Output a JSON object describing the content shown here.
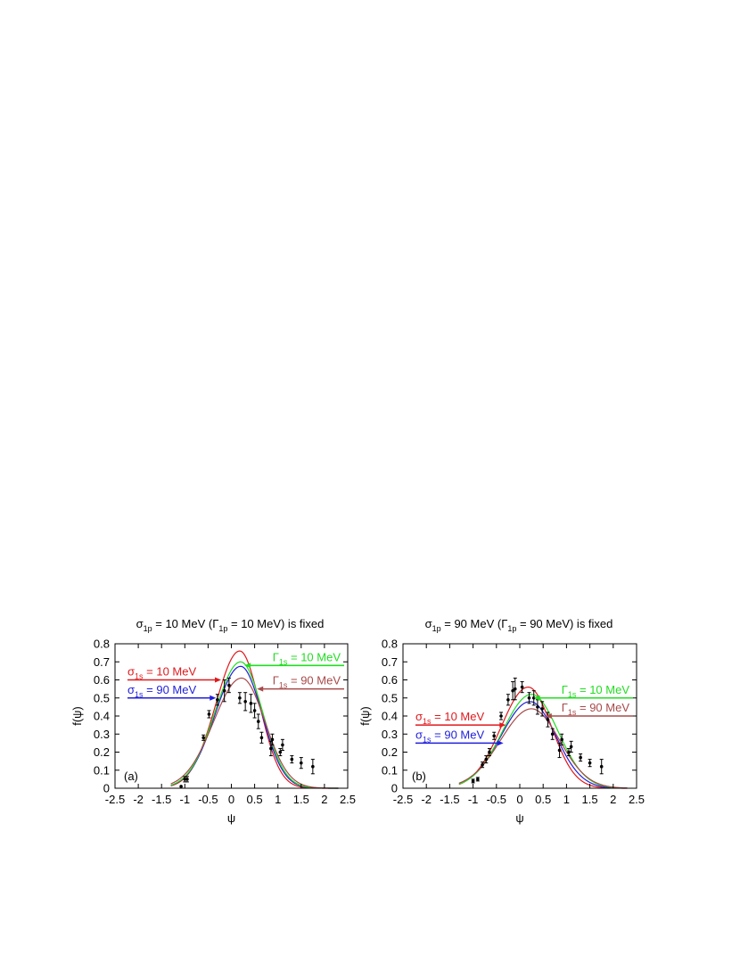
{
  "chart_data": [
    {
      "panel": "a",
      "type": "line",
      "title": {
        "sigma_sub": "1p",
        "sigma_val": "= 10 MeV  (",
        "gamma_sub": "1p",
        "gamma_val": "= 10 MeV) is fixed"
      },
      "xlabel": "ψ",
      "ylabel": "f(ψ)",
      "panel_label": "(a)",
      "xlim": [
        -2.5,
        2.5
      ],
      "ylim": [
        0,
        0.8
      ],
      "xticks": [
        -2.5,
        -2,
        -1.5,
        -1,
        -0.5,
        0,
        0.5,
        1,
        1.5,
        2,
        2.5
      ],
      "yticks": [
        0,
        0.1,
        0.2,
        0.3,
        0.4,
        0.5,
        0.6,
        0.7,
        0.8
      ],
      "grid": false,
      "series": [
        {
          "color": "#e0191c",
          "peak_x": 0.18,
          "peak_y": 0.76,
          "w_left": 0.52,
          "w_right": 0.43,
          "label_sym": "σ",
          "label_sub": "1s",
          "label_val": "= 10 MeV",
          "label_y": 0.6,
          "arrow_tip_x": -0.22,
          "arrow_side": "left"
        },
        {
          "color": "#1f1fdc",
          "peak_x": 0.2,
          "peak_y": 0.675,
          "w_left": 0.55,
          "w_right": 0.46,
          "label_sym": "σ",
          "label_sub": "1s",
          "label_val": "= 90 MeV",
          "label_y": 0.5,
          "arrow_tip_x": -0.33,
          "arrow_side": "left"
        },
        {
          "color": "#22dd22",
          "peak_x": 0.2,
          "peak_y": 0.7,
          "w_left": 0.55,
          "w_right": 0.47,
          "label_sym": "Γ",
          "label_sub": "1s",
          "label_val": "= 10 MeV",
          "label_y": 0.68,
          "arrow_tip_x": 0.28,
          "arrow_side": "right"
        },
        {
          "color": "#a84a4a",
          "peak_x": 0.22,
          "peak_y": 0.61,
          "w_left": 0.6,
          "w_right": 0.5,
          "label_sym": "Γ",
          "label_sub": "1s",
          "label_val": "= 90 MeV",
          "label_y": 0.55,
          "arrow_tip_x": 0.55,
          "arrow_side": "right"
        }
      ],
      "data_points": [
        {
          "x": -1.08,
          "y": 0.01,
          "e": 0.0
        },
        {
          "x": -1.0,
          "y": 0.05,
          "e": 0.015
        },
        {
          "x": -0.95,
          "y": 0.05,
          "e": 0.015
        },
        {
          "x": -0.6,
          "y": 0.28,
          "e": 0.015
        },
        {
          "x": -0.48,
          "y": 0.41,
          "e": 0.02
        },
        {
          "x": -0.3,
          "y": 0.49,
          "e": 0.03
        },
        {
          "x": -0.15,
          "y": 0.54,
          "e": 0.06
        },
        {
          "x": -0.05,
          "y": 0.57,
          "e": 0.04
        },
        {
          "x": 0.18,
          "y": 0.5,
          "e": 0.03
        },
        {
          "x": 0.3,
          "y": 0.48,
          "e": 0.05
        },
        {
          "x": 0.42,
          "y": 0.47,
          "e": 0.05
        },
        {
          "x": 0.5,
          "y": 0.43,
          "e": 0.04
        },
        {
          "x": 0.58,
          "y": 0.37,
          "e": 0.04
        },
        {
          "x": 0.65,
          "y": 0.28,
          "e": 0.03
        },
        {
          "x": 0.85,
          "y": 0.22,
          "e": 0.04
        },
        {
          "x": 0.88,
          "y": 0.27,
          "e": 0.03
        },
        {
          "x": 1.05,
          "y": 0.2,
          "e": 0.02
        },
        {
          "x": 1.1,
          "y": 0.24,
          "e": 0.03
        },
        {
          "x": 1.3,
          "y": 0.16,
          "e": 0.02
        },
        {
          "x": 1.5,
          "y": 0.14,
          "e": 0.03
        },
        {
          "x": 1.75,
          "y": 0.12,
          "e": 0.04
        }
      ]
    },
    {
      "panel": "b",
      "type": "line",
      "title": {
        "sigma_sub": "1p",
        "sigma_val": "= 90 MeV (",
        "gamma_sub": "1p",
        "gamma_val": "= 90 MeV) is fixed"
      },
      "xlabel": "ψ",
      "ylabel": "f(ψ)",
      "panel_label": "(b)",
      "xlim": [
        -2.5,
        2.5
      ],
      "ylim": [
        0,
        0.8
      ],
      "xticks": [
        -2.5,
        -2,
        -1.5,
        -1,
        -0.5,
        0,
        0.5,
        1,
        1.5,
        2,
        2.5
      ],
      "yticks": [
        0,
        0.1,
        0.2,
        0.3,
        0.4,
        0.5,
        0.6,
        0.7,
        0.8
      ],
      "grid": false,
      "series": [
        {
          "color": "#e0191c",
          "peak_x": 0.18,
          "peak_y": 0.56,
          "w_left": 0.58,
          "w_right": 0.5,
          "label_sym": "σ",
          "label_sub": "1s",
          "label_val": "= 10 MeV",
          "label_y": 0.35,
          "arrow_tip_x": -0.3,
          "arrow_side": "left"
        },
        {
          "color": "#1f1fdc",
          "peak_x": 0.22,
          "peak_y": 0.48,
          "w_left": 0.62,
          "w_right": 0.55,
          "label_sym": "σ",
          "label_sub": "1s",
          "label_val": "= 90 MeV",
          "label_y": 0.25,
          "arrow_tip_x": -0.35,
          "arrow_side": "left"
        },
        {
          "color": "#22dd22",
          "peak_x": 0.25,
          "peak_y": 0.52,
          "w_left": 0.62,
          "w_right": 0.57,
          "label_sym": "Γ",
          "label_sub": "1s",
          "label_val": "= 10 MeV",
          "label_y": 0.5,
          "arrow_tip_x": 0.3,
          "arrow_side": "right"
        },
        {
          "color": "#a84a4a",
          "peak_x": 0.25,
          "peak_y": 0.44,
          "w_left": 0.66,
          "w_right": 0.6,
          "label_sym": "Γ",
          "label_sub": "1s",
          "label_val": "= 90 MeV",
          "label_y": 0.4,
          "arrow_tip_x": 0.55,
          "arrow_side": "right"
        }
      ],
      "data_points": [
        {
          "x": -1.0,
          "y": 0.04,
          "e": 0.01
        },
        {
          "x": -0.9,
          "y": 0.05,
          "e": 0.01
        },
        {
          "x": -0.8,
          "y": 0.13,
          "e": 0.015
        },
        {
          "x": -0.72,
          "y": 0.16,
          "e": 0.02
        },
        {
          "x": -0.65,
          "y": 0.2,
          "e": 0.02
        },
        {
          "x": -0.55,
          "y": 0.29,
          "e": 0.02
        },
        {
          "x": -0.4,
          "y": 0.4,
          "e": 0.02
        },
        {
          "x": -0.25,
          "y": 0.49,
          "e": 0.03
        },
        {
          "x": -0.15,
          "y": 0.54,
          "e": 0.05
        },
        {
          "x": -0.1,
          "y": 0.55,
          "e": 0.06
        },
        {
          "x": 0.05,
          "y": 0.56,
          "e": 0.03
        },
        {
          "x": 0.2,
          "y": 0.5,
          "e": 0.03
        },
        {
          "x": 0.3,
          "y": 0.5,
          "e": 0.04
        },
        {
          "x": 0.38,
          "y": 0.45,
          "e": 0.04
        },
        {
          "x": 0.48,
          "y": 0.44,
          "e": 0.04
        },
        {
          "x": 0.6,
          "y": 0.38,
          "e": 0.04
        },
        {
          "x": 0.7,
          "y": 0.3,
          "e": 0.03
        },
        {
          "x": 0.85,
          "y": 0.21,
          "e": 0.04
        },
        {
          "x": 0.9,
          "y": 0.27,
          "e": 0.03
        },
        {
          "x": 1.05,
          "y": 0.2,
          "e": 0.02
        },
        {
          "x": 1.1,
          "y": 0.23,
          "e": 0.03
        },
        {
          "x": 1.3,
          "y": 0.17,
          "e": 0.02
        },
        {
          "x": 1.5,
          "y": 0.14,
          "e": 0.02
        },
        {
          "x": 1.75,
          "y": 0.12,
          "e": 0.04
        }
      ]
    }
  ]
}
